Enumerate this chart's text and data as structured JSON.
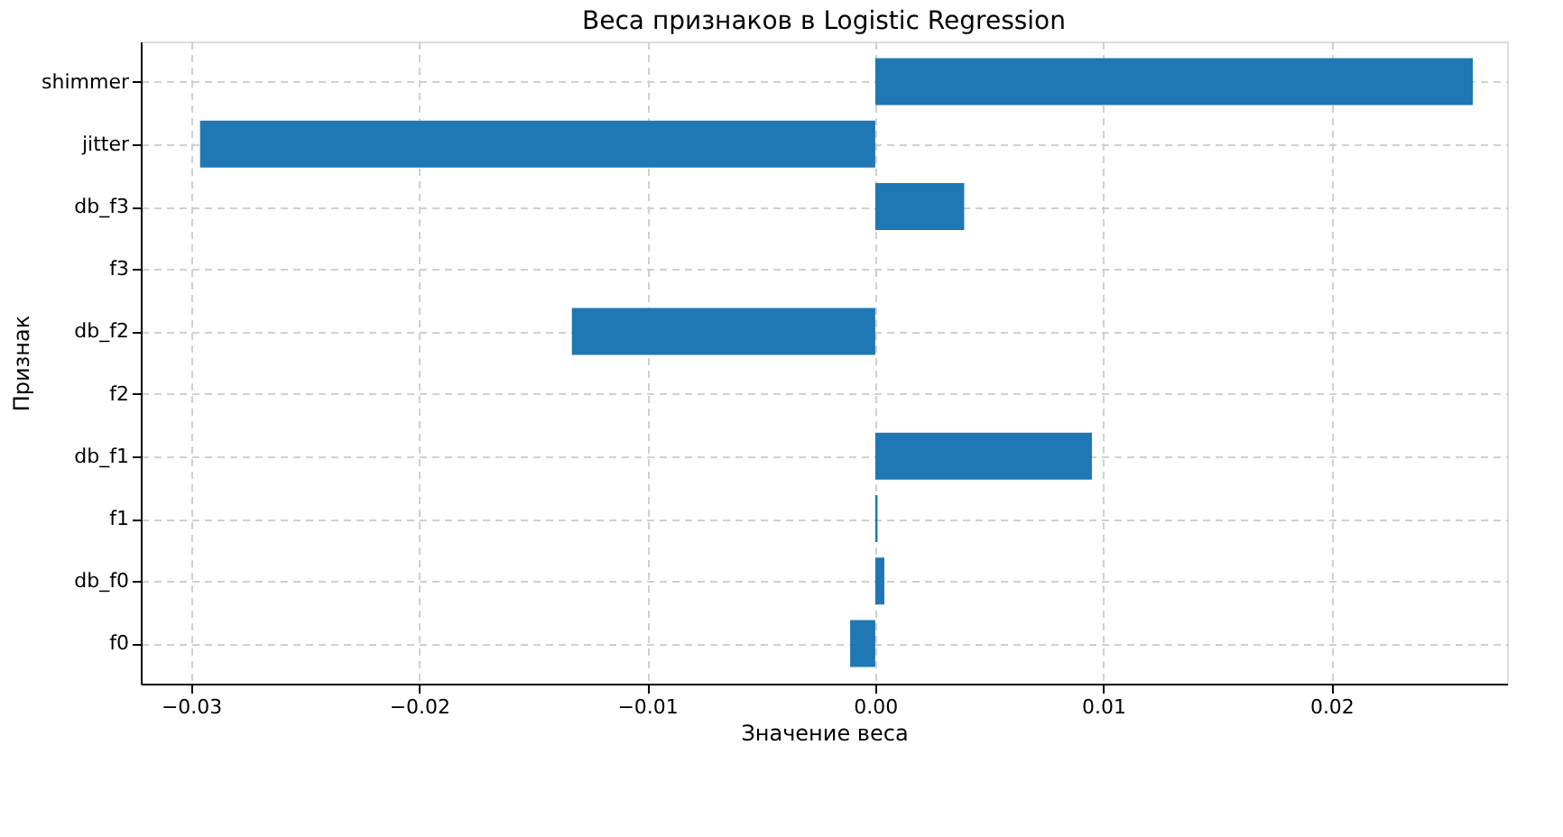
{
  "chart_data": {
    "type": "bar",
    "orientation": "horizontal",
    "title": "Веса признаков в Logistic Regression",
    "xlabel": "Значение веса",
    "ylabel": "Признак",
    "categories": [
      "shimmer",
      "jitter",
      "db_f3",
      "f3",
      "db_f2",
      "f2",
      "db_f1",
      "f1",
      "db_f0",
      "f0"
    ],
    "values": [
      0.0262,
      -0.0296,
      0.0039,
      0,
      -0.0133,
      0,
      0.0095,
      0.0001,
      0.0004,
      -0.0011
    ],
    "color": "#1f77b4",
    "xlim": [
      -0.0322,
      0.0277
    ],
    "xticks": [
      {
        "value": -0.03,
        "label": "−0.03"
      },
      {
        "value": -0.02,
        "label": "−0.02"
      },
      {
        "value": -0.01,
        "label": "−0.01"
      },
      {
        "value": 0,
        "label": "0.00"
      },
      {
        "value": 0.01,
        "label": "0.01"
      },
      {
        "value": 0.02,
        "label": "0.02"
      }
    ],
    "grid": true
  }
}
